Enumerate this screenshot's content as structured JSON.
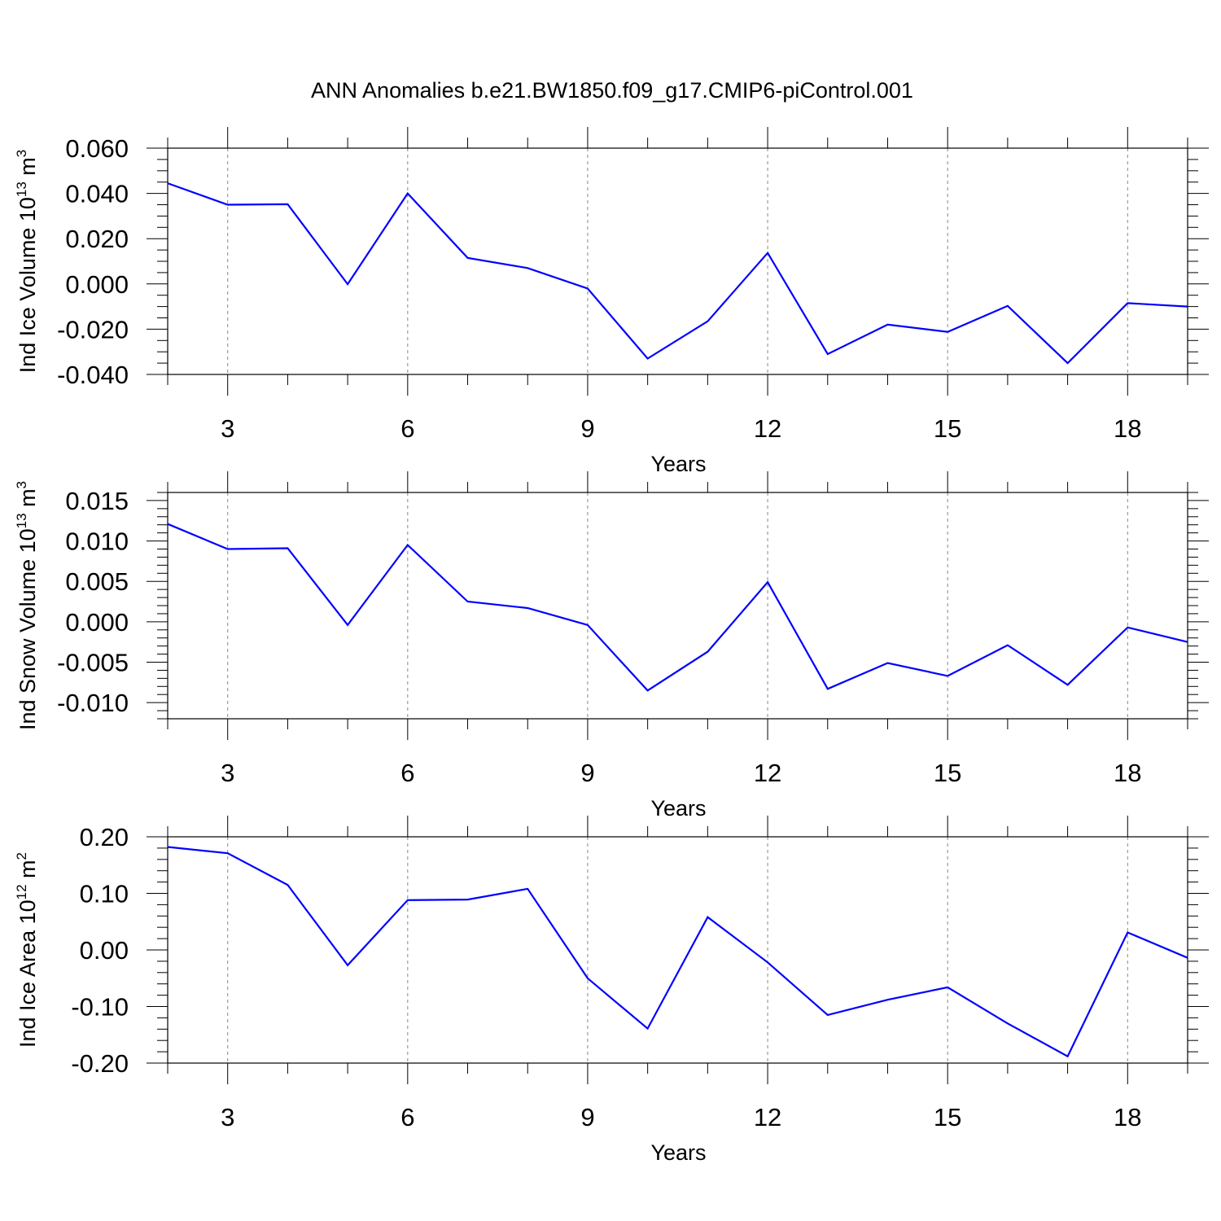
{
  "figure": {
    "title": "ANN Anomalies b.e21.BW1850.f09_g17.CMIP6-piControl.001"
  },
  "style": {
    "line_color": "#0000ff",
    "axis_color": "#000000",
    "grid_color": "#888888"
  },
  "chart_data": [
    {
      "type": "line",
      "ylabel": "Ind Ice Volume 10",
      "ylabel_exp": "13",
      "ylabel_unit": " m",
      "ylabel_unit_exp": "3",
      "xlabel": "Years",
      "xlim": [
        2,
        19
      ],
      "ylim": [
        -0.04,
        0.06
      ],
      "xticks": [
        3,
        6,
        9,
        12,
        15,
        18
      ],
      "xtick_labels": [
        "3",
        "6",
        "9",
        "12",
        "15",
        "18"
      ],
      "yticks": [
        -0.04,
        -0.02,
        0.0,
        0.02,
        0.04,
        0.06
      ],
      "ytick_labels": [
        "-0.040",
        "-0.020",
        "0.000",
        "0.020",
        "0.040",
        "0.060"
      ],
      "y_minor_step": 0.005,
      "grid": "vertical dashed at major x ticks",
      "x": [
        2,
        3,
        4,
        5,
        6,
        7,
        8,
        9,
        10,
        11,
        12,
        13,
        14,
        15,
        16,
        17,
        18,
        19
      ],
      "values": [
        0.0445,
        0.035,
        0.0352,
        -0.0001,
        0.04,
        0.0115,
        0.007,
        -0.002,
        -0.033,
        -0.0165,
        0.0137,
        -0.031,
        -0.018,
        -0.0212,
        -0.0097,
        -0.035,
        -0.0085,
        -0.01
      ]
    },
    {
      "type": "line",
      "ylabel": "Ind Snow Volume 10",
      "ylabel_exp": "13",
      "ylabel_unit": " m",
      "ylabel_unit_exp": "3",
      "xlabel": "Years",
      "xlim": [
        2,
        19
      ],
      "ylim": [
        -0.012,
        0.016
      ],
      "xticks": [
        3,
        6,
        9,
        12,
        15,
        18
      ],
      "xtick_labels": [
        "3",
        "6",
        "9",
        "12",
        "15",
        "18"
      ],
      "yticks": [
        -0.01,
        -0.005,
        0.0,
        0.005,
        0.01,
        0.015
      ],
      "ytick_labels": [
        "-0.010",
        "-0.005",
        "0.000",
        "0.005",
        "0.010",
        "0.015"
      ],
      "y_minor_step": 0.001,
      "grid": "vertical dashed at major x ticks",
      "x": [
        2,
        3,
        4,
        5,
        6,
        7,
        8,
        9,
        10,
        11,
        12,
        13,
        14,
        15,
        16,
        17,
        18,
        19
      ],
      "values": [
        0.0121,
        0.009,
        0.0091,
        -0.0004,
        0.0095,
        0.0025,
        0.0017,
        -0.0004,
        -0.0085,
        -0.0037,
        0.0049,
        -0.0083,
        -0.0051,
        -0.0067,
        -0.0029,
        -0.0078,
        -0.0007,
        -0.0025
      ]
    },
    {
      "type": "line",
      "ylabel": "Ind Ice Area 10",
      "ylabel_exp": "12",
      "ylabel_unit": " m",
      "ylabel_unit_exp": "2",
      "xlabel": "Years",
      "xlim": [
        2,
        19
      ],
      "ylim": [
        -0.2,
        0.2
      ],
      "xticks": [
        3,
        6,
        9,
        12,
        15,
        18
      ],
      "xtick_labels": [
        "3",
        "6",
        "9",
        "12",
        "15",
        "18"
      ],
      "yticks": [
        -0.2,
        -0.1,
        0.0,
        0.1,
        0.2
      ],
      "ytick_labels": [
        "-0.20",
        "-0.10",
        "0.00",
        "0.10",
        "0.20"
      ],
      "y_minor_step": 0.02,
      "grid": "vertical dashed at major x ticks",
      "x": [
        2,
        3,
        4,
        5,
        6,
        7,
        8,
        9,
        10,
        11,
        12,
        13,
        14,
        15,
        16,
        17,
        18,
        19
      ],
      "values": [
        0.182,
        0.171,
        0.115,
        -0.027,
        0.088,
        0.089,
        0.108,
        -0.05,
        -0.139,
        0.058,
        -0.022,
        -0.115,
        -0.088,
        -0.066,
        -0.13,
        -0.188,
        0.031,
        -0.014
      ]
    }
  ]
}
